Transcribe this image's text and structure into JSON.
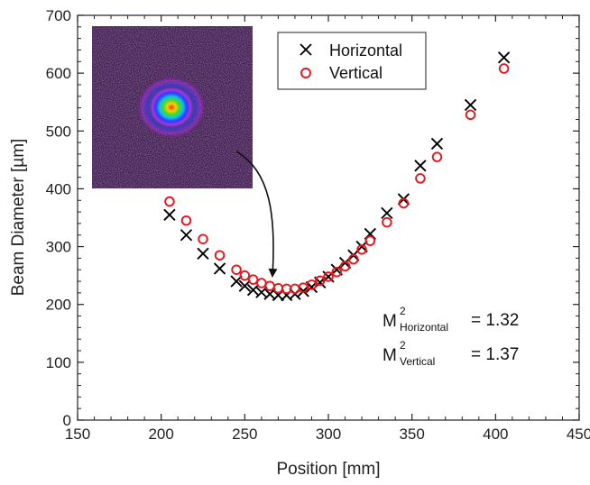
{
  "chart_data": {
    "type": "scatter",
    "title": "",
    "xlabel": "Position [mm]",
    "ylabel": "Beam Diameter [µm]",
    "xlim": [
      150,
      450
    ],
    "ylim": [
      0,
      700
    ],
    "xticks": [
      150,
      200,
      250,
      300,
      350,
      400,
      450
    ],
    "yticks": [
      0,
      100,
      200,
      300,
      400,
      500,
      600,
      700
    ],
    "grid": false,
    "legend_position": "top-center",
    "series": [
      {
        "name": "Horizontal",
        "marker": "x",
        "color": "#000000",
        "x": [
          205,
          215,
          225,
          235,
          245,
          250,
          255,
          260,
          265,
          270,
          275,
          280,
          285,
          290,
          295,
          300,
          305,
          310,
          315,
          320,
          325,
          335,
          345,
          355,
          365,
          385,
          405
        ],
        "y": [
          355,
          320,
          288,
          262,
          240,
          232,
          225,
          221,
          218,
          216,
          216,
          218,
          223,
          230,
          238,
          248,
          260,
          272,
          285,
          300,
          322,
          358,
          382,
          440,
          478,
          545,
          627
        ]
      },
      {
        "name": "Vertical",
        "marker": "circle",
        "color": "#e8141c",
        "x": [
          205,
          215,
          225,
          235,
          245,
          250,
          255,
          260,
          265,
          270,
          275,
          280,
          285,
          290,
          295,
          300,
          305,
          310,
          315,
          320,
          325,
          335,
          345,
          355,
          365,
          385,
          405
        ],
        "y": [
          378,
          345,
          313,
          285,
          260,
          250,
          243,
          237,
          232,
          228,
          227,
          227,
          229,
          234,
          241,
          248,
          256,
          266,
          278,
          295,
          310,
          342,
          375,
          418,
          455,
          528,
          608
        ]
      }
    ],
    "annotations": [
      {
        "base": "M",
        "sup": "2",
        "sub": "Horizontal",
        "value": "= 1.32"
      },
      {
        "base": "M",
        "sup": "2",
        "sub": "Vertical",
        "value": "= 1.37"
      }
    ],
    "inset": {
      "kind": "beam-profile-image",
      "arrow_target": {
        "x": 270,
        "y": 220
      }
    }
  }
}
